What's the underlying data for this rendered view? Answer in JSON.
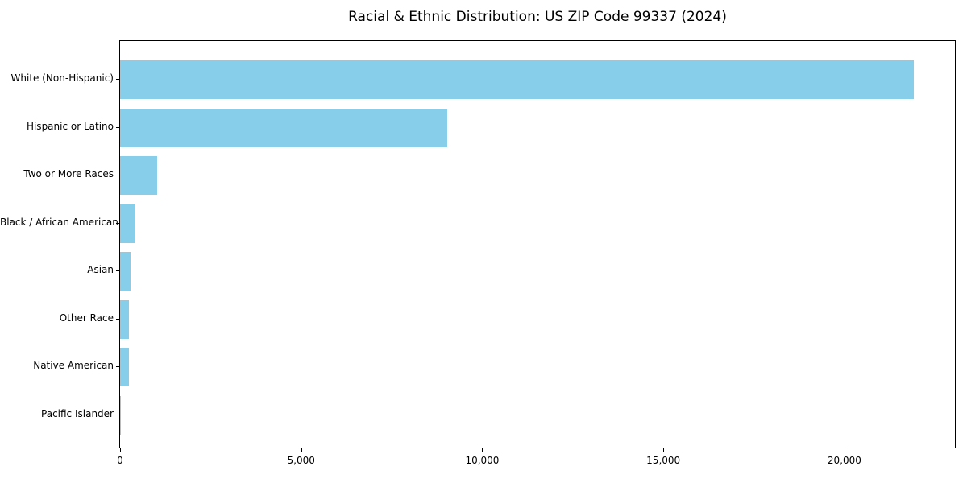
{
  "chart_data": {
    "type": "bar",
    "orientation": "horizontal",
    "title": "Racial & Ethnic Distribution: US ZIP Code 99337 (2024)",
    "categories": [
      "White (Non-Hispanic)",
      "Hispanic or Latino",
      "Two or More Races",
      "Black / African American",
      "Asian",
      "Other Race",
      "Native American",
      "Pacific Islander"
    ],
    "values": [
      21920,
      9030,
      1025,
      395,
      300,
      255,
      240,
      10
    ],
    "xlabel": "",
    "ylabel": "",
    "xlim": [
      0,
      23050
    ],
    "xticks": [
      0,
      5000,
      10000,
      15000,
      20000
    ],
    "xtick_labels": [
      "0",
      "5,000",
      "10,000",
      "15,000",
      "20,000"
    ],
    "bar_color": "#87CEEB",
    "axis_color": "#000000",
    "text_color": "#000000",
    "grid": false,
    "legend": null
  }
}
